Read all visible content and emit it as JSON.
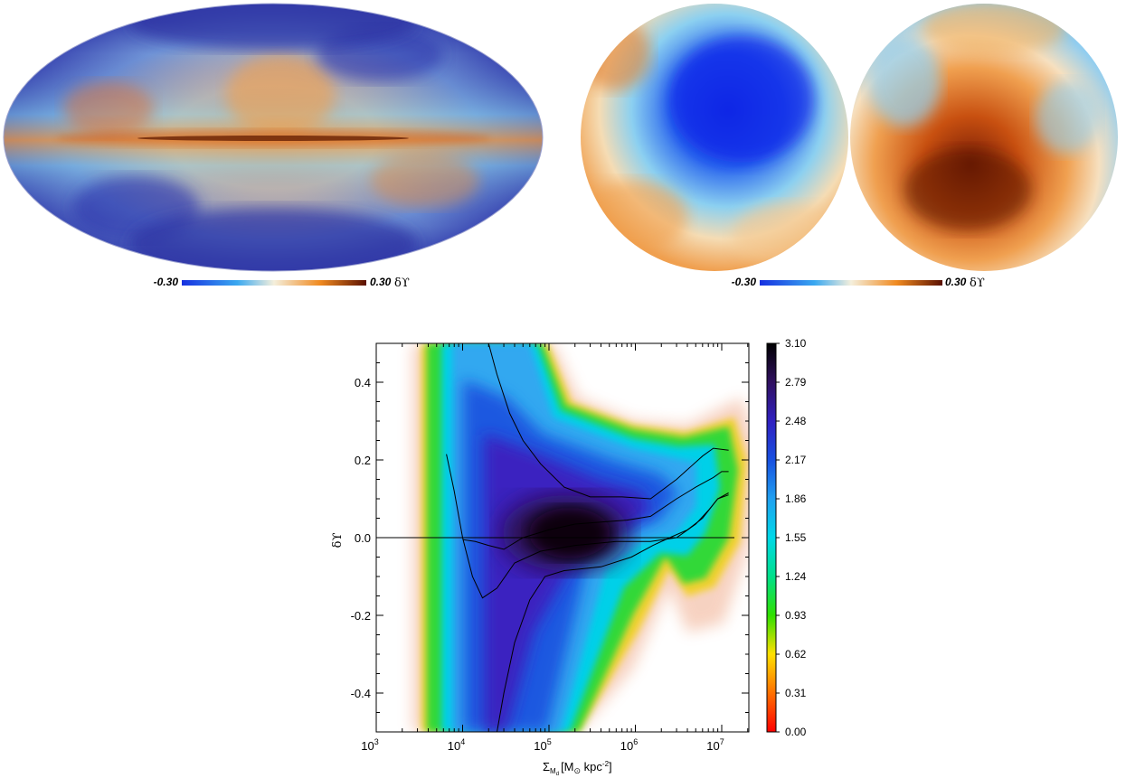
{
  "maps": {
    "left": {
      "colorbar": {
        "min_label": "-0.30",
        "max_label": "0.30",
        "unit": "δϒ"
      }
    },
    "right": {
      "colorbar": {
        "min_label": "-0.30",
        "max_label": "0.30",
        "unit": "δϒ"
      }
    }
  },
  "colors": {
    "map_blue": "#2a2fb0",
    "map_cyan": "#7fc8e8",
    "map_cream": "#f3ead0",
    "map_orange": "#e8892c",
    "map_dark_red": "#6a1a08"
  },
  "chart_data": {
    "type": "heatmap",
    "title": "",
    "xlabel": "Σ",
    "xlabel_sub": "M",
    "xlabel_sub2": "d",
    "xlabel_units_prefix": "[M",
    "xlabel_units_sun": "⊙",
    "xlabel_units_suffix": " kpc",
    "xlabel_units_exp": "-2",
    "xlabel_units_close": "]",
    "ylabel": "δϒ",
    "x_scale": "log",
    "xlim": [
      1000,
      30000000
    ],
    "ylim": [
      -0.5,
      0.5
    ],
    "x_ticks": [
      {
        "value": 1000,
        "base": "10",
        "exp": "3"
      },
      {
        "value": 10000,
        "base": "10",
        "exp": "4"
      },
      {
        "value": 100000,
        "base": "10",
        "exp": "5"
      },
      {
        "value": 1000000,
        "base": "10",
        "exp": "6"
      },
      {
        "value": 10000000,
        "base": "10",
        "exp": "7"
      }
    ],
    "y_ticks": [
      {
        "value": 0.4,
        "label": "0.4"
      },
      {
        "value": 0.2,
        "label": "0.2"
      },
      {
        "value": 0.0,
        "label": "0.0"
      },
      {
        "value": -0.2,
        "label": "-0.2"
      },
      {
        "value": -0.4,
        "label": "-0.4"
      }
    ],
    "colorbar": {
      "min": 0.0,
      "max": 3.1,
      "tick_labels": [
        "3.10",
        "2.79",
        "2.48",
        "2.17",
        "1.86",
        "1.55",
        "1.24",
        "0.93",
        "0.62",
        "0.31",
        "0.00"
      ]
    },
    "curves": {
      "median": [
        [
          10000,
          -0.005
        ],
        [
          14000,
          -0.01
        ],
        [
          20000,
          -0.02
        ],
        [
          30000,
          -0.03
        ],
        [
          50000,
          0.0
        ],
        [
          100000,
          0.02
        ],
        [
          200000,
          0.035
        ],
        [
          400000,
          0.04
        ],
        [
          800000,
          0.045
        ],
        [
          1500000,
          0.055
        ],
        [
          3000000,
          0.1
        ],
        [
          5000000,
          0.13
        ],
        [
          8000000,
          0.155
        ],
        [
          10000000,
          0.17
        ],
        [
          12000000,
          0.17
        ]
      ],
      "upper": [
        [
          20000,
          0.5
        ],
        [
          25000,
          0.42
        ],
        [
          35000,
          0.32
        ],
        [
          50000,
          0.25
        ],
        [
          80000,
          0.19
        ],
        [
          150000,
          0.13
        ],
        [
          300000,
          0.105
        ],
        [
          700000,
          0.105
        ],
        [
          1500000,
          0.1
        ],
        [
          3000000,
          0.15
        ],
        [
          6000000,
          0.21
        ],
        [
          8000000,
          0.23
        ],
        [
          12000000,
          0.225
        ]
      ],
      "lower": [
        [
          6500,
          0.215
        ],
        [
          8000,
          0.12
        ],
        [
          10000,
          0.0
        ],
        [
          13000,
          -0.1
        ],
        [
          17000,
          -0.155
        ],
        [
          25000,
          -0.13
        ],
        [
          40000,
          -0.065
        ],
        [
          80000,
          -0.035
        ],
        [
          200000,
          -0.02
        ],
        [
          600000,
          -0.01
        ],
        [
          1500000,
          -0.01
        ],
        [
          3000000,
          0.0
        ],
        [
          5000000,
          0.035
        ],
        [
          7000000,
          0.07
        ],
        [
          9000000,
          0.1
        ],
        [
          12000000,
          0.11
        ]
      ],
      "lowest": [
        [
          25000,
          -0.5
        ],
        [
          30000,
          -0.4
        ],
        [
          40000,
          -0.27
        ],
        [
          60000,
          -0.16
        ],
        [
          90000,
          -0.1
        ],
        [
          150000,
          -0.085
        ],
        [
          400000,
          -0.075
        ],
        [
          900000,
          -0.05
        ],
        [
          1600000,
          -0.02
        ],
        [
          2500000,
          0.0
        ],
        [
          4000000,
          0.02
        ],
        [
          6000000,
          0.05
        ],
        [
          9000000,
          0.1
        ],
        [
          12000000,
          0.115
        ]
      ],
      "zero_line": [
        [
          1000,
          0.0
        ],
        [
          14000000,
          0.0
        ]
      ]
    }
  }
}
